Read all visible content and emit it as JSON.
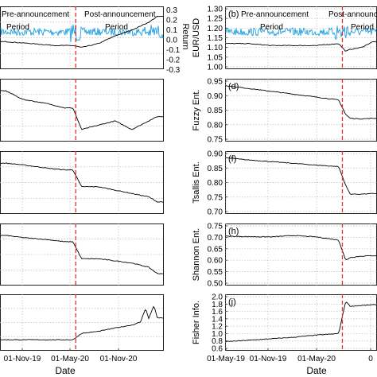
{
  "colors": {
    "series": "#000000",
    "return": "#1f9fe0",
    "return_axis": "#1f8fe6",
    "announcement": "#e03030",
    "grid": "#bdbdbd"
  },
  "shared": {
    "xlabel": "Date",
    "left_xticks": [
      "01-Nov-19",
      "01-May-20",
      "01-Nov-20"
    ],
    "right_xticks": [
      "01-May-19",
      "01-Nov-19",
      "01-May-20",
      "0"
    ],
    "pre_label": "Pre-announcement",
    "post_label": "Post-announcement",
    "period_label": "Period",
    "return_ylabel": "Return"
  },
  "chart_data": [
    {
      "id": "a",
      "type": "line",
      "column": "left",
      "panel_label": "",
      "ylabel": "",
      "price_ylim": [
        1.0,
        1.3
      ],
      "series": [
        {
          "name": "Return",
          "axis": "right",
          "ylim": [
            -0.3,
            0.3
          ],
          "ticks": [
            "0.3",
            "0.2",
            "0.1",
            "0.0",
            "-0.1",
            "-0.2",
            "-0.3"
          ],
          "values": [
            0.0
          ]
        },
        {
          "axis": "left",
          "x": [
            "2019-07",
            "2019-10",
            "2020-01",
            "2020-03",
            "2020-04",
            "2020-06",
            "2020-08",
            "2020-10",
            "2020-12",
            "2021-01"
          ],
          "values": [
            1.13,
            1.12,
            1.11,
            1.11,
            1.1,
            1.12,
            1.16,
            1.19,
            1.23,
            1.26
          ]
        }
      ],
      "announcement_x": "2020-03-11"
    },
    {
      "id": "b",
      "type": "line",
      "column": "right",
      "panel_label": "(b)",
      "ylabel": "EUR/USD",
      "ylim": [
        1.0,
        1.3
      ],
      "yticks": [
        "1.30",
        "1.25",
        "1.20",
        "1.15",
        "1.10",
        "1.05",
        "1.00"
      ],
      "x": [
        "2019-05",
        "2019-07",
        "2019-09",
        "2019-11",
        "2020-01",
        "2020-03",
        "2020-03-20",
        "2020-04",
        "2020-05",
        "2020-06"
      ],
      "values": [
        1.12,
        1.12,
        1.11,
        1.11,
        1.11,
        1.12,
        1.08,
        1.09,
        1.1,
        1.13
      ],
      "announcement_x": "2020-03-11"
    },
    {
      "id": "c",
      "type": "line",
      "column": "left",
      "panel_label": "",
      "ylabel": "",
      "x": [
        "2019-07",
        "2019-09",
        "2019-12",
        "2020-02",
        "2020-03",
        "2020-04",
        "2020-06",
        "2020-08",
        "2020-10",
        "2020-12",
        "2021-01"
      ],
      "values": [
        0.88,
        0.84,
        0.82,
        0.8,
        0.8,
        0.7,
        0.72,
        0.74,
        0.7,
        0.74,
        0.76
      ],
      "announcement_x": "2020-03-11"
    },
    {
      "id": "d",
      "type": "line",
      "column": "right",
      "panel_label": "(d)",
      "ylabel": "Fuzzy Ent.",
      "ylim": [
        0.75,
        0.95
      ],
      "yticks": [
        "0.95",
        "0.90",
        "0.85",
        "0.80",
        "0.75"
      ],
      "x": [
        "2019-05",
        "2019-07",
        "2019-09",
        "2019-11",
        "2020-01",
        "2020-03",
        "2020-03-20",
        "2020-04",
        "2020-05",
        "2020-06"
      ],
      "values": [
        0.935,
        0.925,
        0.915,
        0.905,
        0.895,
        0.885,
        0.835,
        0.822,
        0.82,
        0.822
      ],
      "announcement_x": "2020-03-11"
    },
    {
      "id": "e",
      "type": "line",
      "column": "left",
      "panel_label": "",
      "ylabel": "",
      "x": [
        "2019-07",
        "2019-09",
        "2019-12",
        "2020-02",
        "2020-03",
        "2020-04",
        "2020-06",
        "2020-08",
        "2020-10",
        "2020-12",
        "2021-01"
      ],
      "values": [
        0.86,
        0.85,
        0.83,
        0.82,
        0.82,
        0.72,
        0.72,
        0.7,
        0.68,
        0.66,
        0.63
      ],
      "announcement_x": "2020-03-11"
    },
    {
      "id": "f",
      "type": "line",
      "column": "right",
      "panel_label": "(f)",
      "ylabel": "Tsallis Ent.",
      "ylim": [
        0.7,
        0.9
      ],
      "yticks": [
        "0.90",
        "0.85",
        "0.80",
        "0.75",
        "0.70"
      ],
      "x": [
        "2019-05",
        "2019-07",
        "2019-09",
        "2019-11",
        "2020-01",
        "2020-03",
        "2020-03-20",
        "2020-04",
        "2020-05",
        "2020-06"
      ],
      "values": [
        0.885,
        0.878,
        0.872,
        0.866,
        0.86,
        0.855,
        0.79,
        0.76,
        0.76,
        0.762
      ],
      "announcement_x": "2020-03-11"
    },
    {
      "id": "g",
      "type": "line",
      "column": "left",
      "panel_label": "",
      "ylabel": "",
      "x": [
        "2019-07",
        "2019-09",
        "2019-12",
        "2020-02",
        "2020-03",
        "2020-04",
        "2020-06",
        "2020-08",
        "2020-10",
        "2020-12",
        "2021-01"
      ],
      "values": [
        0.68,
        0.67,
        0.66,
        0.65,
        0.65,
        0.57,
        0.57,
        0.56,
        0.55,
        0.53,
        0.5
      ],
      "announcement_x": "2020-03-11"
    },
    {
      "id": "h",
      "type": "line",
      "column": "right",
      "panel_label": "(h)",
      "ylabel": "Shannon Ent.",
      "ylim": [
        0.5,
        0.75
      ],
      "yticks": [
        "0.75",
        "0.70",
        "0.65",
        "0.60",
        "0.55",
        "0.50"
      ],
      "x": [
        "2019-05",
        "2019-07",
        "2019-09",
        "2019-11",
        "2020-01",
        "2020-03",
        "2020-03-20",
        "2020-04",
        "2020-05",
        "2020-06"
      ],
      "values": [
        0.705,
        0.703,
        0.702,
        0.708,
        0.702,
        0.688,
        0.6,
        0.612,
        0.618,
        0.62
      ],
      "announcement_x": "2020-03-11"
    },
    {
      "id": "i",
      "type": "line",
      "column": "left",
      "panel_label": "",
      "ylabel": "",
      "x": [
        "2019-07",
        "2019-10",
        "2020-01",
        "2020-03",
        "2020-04",
        "2020-06",
        "2020-08",
        "2020-10",
        "2020-11",
        "2020-11-20",
        "2020-12",
        "2020-12-20",
        "2021-01"
      ],
      "values": [
        0.1,
        0.1,
        0.1,
        0.1,
        0.25,
        0.3,
        0.38,
        0.45,
        0.52,
        0.85,
        0.6,
        0.92,
        0.62
      ],
      "announcement_x": "2020-03-11"
    },
    {
      "id": "j",
      "type": "line",
      "column": "right",
      "panel_label": "(j)",
      "ylabel": "Fisher Info.",
      "ylim": [
        0.6,
        2.0
      ],
      "yticks": [
        "2.0",
        "1.8",
        "1.6",
        "1.4",
        "1.2",
        "1.0",
        "0.8",
        "0.6"
      ],
      "x": [
        "2019-05",
        "2019-07",
        "2019-09",
        "2019-11",
        "2020-01",
        "2020-03",
        "2020-03-20",
        "2020-04",
        "2020-05",
        "2020-06"
      ],
      "values": [
        0.78,
        0.82,
        0.86,
        0.9,
        0.96,
        1.0,
        1.88,
        1.74,
        1.76,
        1.78
      ],
      "announcement_x": "2020-03-11"
    }
  ]
}
